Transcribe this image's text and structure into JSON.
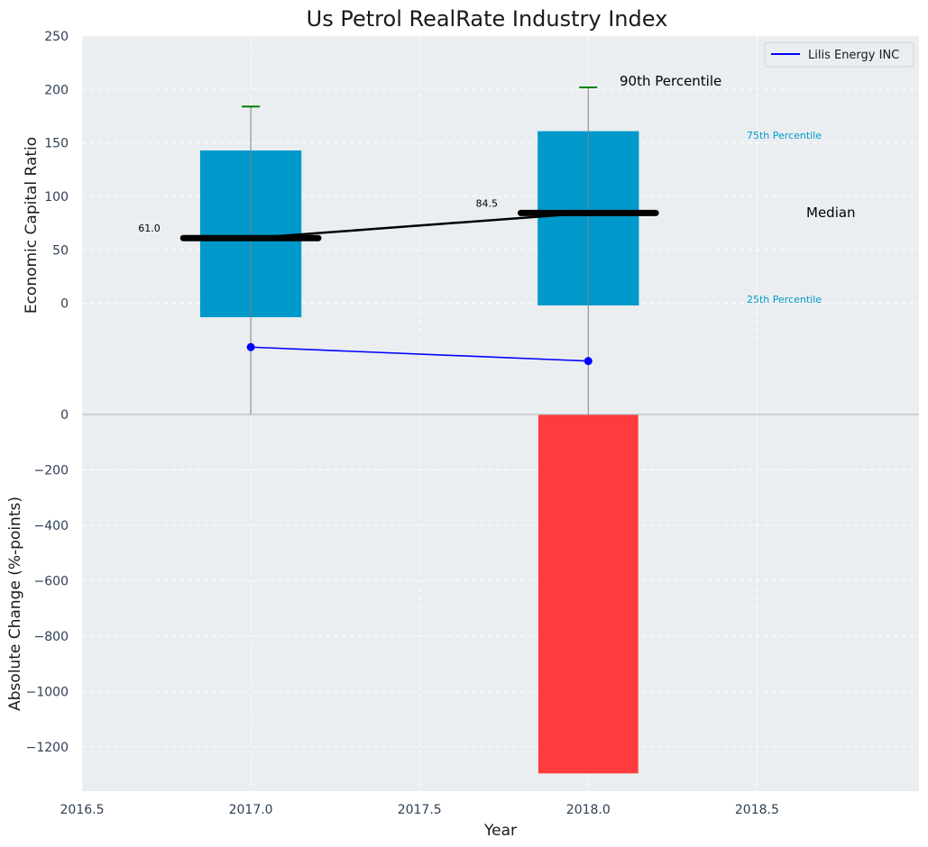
{
  "chart_data": {
    "title": "Us Petrol RealRate Industry Index",
    "xlabel": "Year",
    "x_ticks": [
      "2016.5",
      "2017.0",
      "2017.5",
      "2018.0",
      "2018.5"
    ],
    "x_tick_values": [
      2016.5,
      2017.0,
      2017.5,
      2018.0,
      2018.5
    ],
    "xlim": [
      2016.5,
      2018.98
    ],
    "top_panel": {
      "type": "box",
      "ylabel": "Economic Capital Ratio",
      "ylim": [
        -104,
        250
      ],
      "y_ticks": [
        "0",
        "50",
        "100",
        "150",
        "200",
        "250"
      ],
      "y_tick_values": [
        0,
        50,
        100,
        150,
        200,
        250
      ],
      "boxes": [
        {
          "year": 2017.0,
          "p25": -13,
          "median": 61.0,
          "p75": 143,
          "p90": 184,
          "median_label": "61.0"
        },
        {
          "year": 2018.0,
          "p25": -2,
          "median": 84.5,
          "p75": 161,
          "p90": 202,
          "median_label": "84.5"
        }
      ],
      "company_series": {
        "name": "Lilis Energy INC",
        "x": [
          2017.0,
          2018.0
        ],
        "y": [
          -41,
          -54
        ]
      },
      "annotations": {
        "p90": "90th Percentile",
        "p75": "75th Percentile",
        "median": "Median",
        "p25": "25th Percentile"
      },
      "legend": {
        "label": "Lilis Energy INC",
        "position": "top-right"
      }
    },
    "bottom_panel": {
      "type": "bar",
      "ylabel": "Absolute Change (%-points)",
      "ylim": [
        -1360,
        0
      ],
      "y_ticks": [
        "0",
        "−200",
        "−400",
        "−600",
        "−800",
        "−1000",
        "−1200"
      ],
      "y_tick_values": [
        0,
        -200,
        -400,
        -600,
        -800,
        -1000,
        -1200
      ],
      "bars": [
        {
          "year": 2018.0,
          "value": -1296
        }
      ]
    },
    "colors": {
      "box": "#0099cc",
      "median": "#000000",
      "p90_cap": "#008000",
      "company": "#0000ff",
      "bar": "#ff3b3f",
      "axes_bg": "#eaeef0",
      "p_label": "#0099cc"
    }
  }
}
